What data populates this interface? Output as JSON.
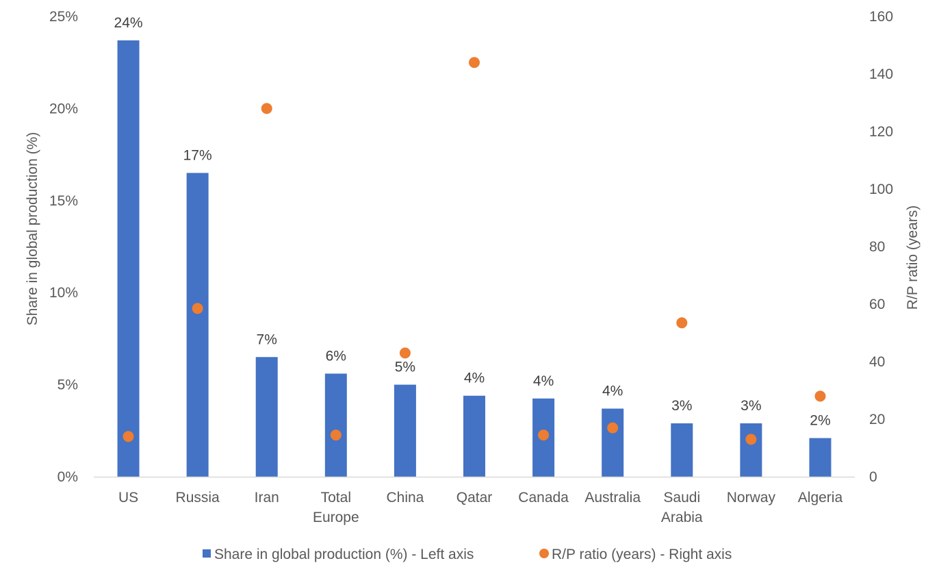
{
  "chart_data": {
    "type": "bar",
    "categories": [
      "US",
      "Russia",
      "Iran",
      "Total Europe",
      "China",
      "Qatar",
      "Canada",
      "Australia",
      "Saudi Arabia",
      "Norway",
      "Algeria"
    ],
    "category_lines": [
      [
        "US"
      ],
      [
        "Russia"
      ],
      [
        "Iran"
      ],
      [
        "Total",
        "Europe"
      ],
      [
        "China"
      ],
      [
        "Qatar"
      ],
      [
        "Canada"
      ],
      [
        "Australia"
      ],
      [
        "Saudi",
        "Arabia"
      ],
      [
        "Norway"
      ],
      [
        "Algeria"
      ]
    ],
    "series": [
      {
        "name": "Share in global production (%) - Left axis",
        "type": "bar",
        "axis": "left",
        "color": "#4472C4",
        "values": [
          23.7,
          16.5,
          6.5,
          5.6,
          5.0,
          4.4,
          4.25,
          3.7,
          2.9,
          2.9,
          2.1
        ],
        "data_labels": [
          "24%",
          "17%",
          "7%",
          "6%",
          "5%",
          "4%",
          "4%",
          "4%",
          "3%",
          "3%",
          "2%"
        ]
      },
      {
        "name": "R/P ratio (years) - Right axis",
        "type": "scatter",
        "axis": "right",
        "color": "#ED7D31",
        "values": [
          14,
          58.5,
          128,
          14.5,
          43,
          144,
          14.5,
          17,
          53.5,
          13,
          28
        ]
      }
    ],
    "left_axis": {
      "title": "Share in global production (%)",
      "ylim": [
        0,
        25
      ],
      "ticks": [
        0,
        5,
        10,
        15,
        20,
        25
      ],
      "tick_labels": [
        "0%",
        "5%",
        "10%",
        "15%",
        "20%",
        "25%"
      ]
    },
    "right_axis": {
      "title": "R/P ratio (years)",
      "ylim": [
        0,
        160
      ],
      "ticks": [
        0,
        20,
        40,
        60,
        80,
        100,
        120,
        140,
        160
      ],
      "tick_labels": [
        "0",
        "20",
        "40",
        "60",
        "80",
        "100",
        "120",
        "140",
        "160"
      ]
    },
    "grid": false,
    "legend_position": "bottom"
  }
}
